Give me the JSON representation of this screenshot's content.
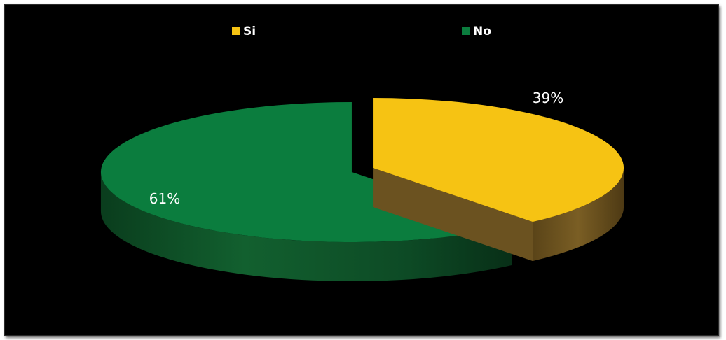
{
  "chart_data": {
    "type": "pie",
    "categories": [
      "Si",
      "No"
    ],
    "values": [
      39,
      61
    ],
    "data_labels": [
      "39%",
      "61%"
    ],
    "colors": [
      "#f6c313",
      "#0b7d3e"
    ],
    "side_colors": [
      "#6b5220",
      "#0c4a23"
    ],
    "legend": {
      "placement": "top",
      "entries": [
        "Si",
        "No"
      ]
    },
    "exploded": true,
    "three_d": true
  }
}
